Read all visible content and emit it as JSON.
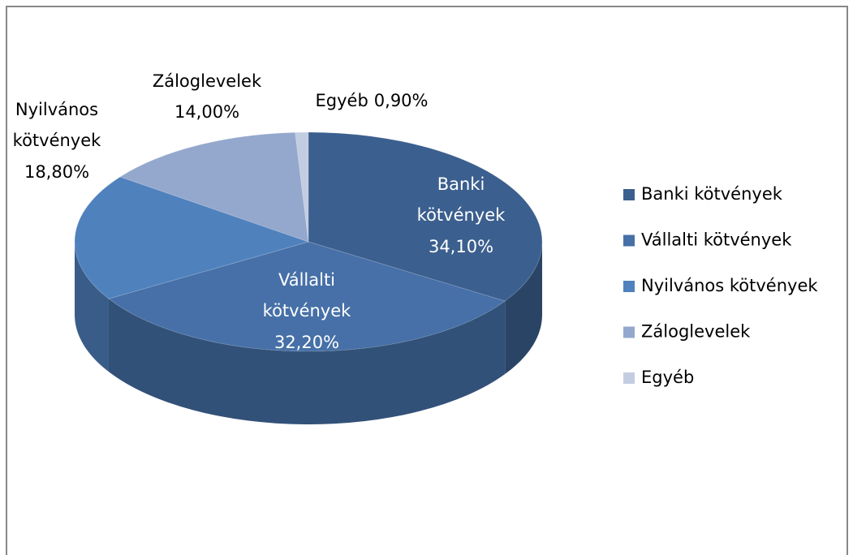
{
  "chart_data": {
    "type": "pie",
    "categories": [
      "Banki kötvények",
      "Vállalti kötvények",
      "Nyilvános kötvények",
      "Záloglevelek",
      "Egyéb"
    ],
    "values": [
      34.1,
      32.2,
      18.8,
      14.0,
      0.9
    ],
    "value_labels": [
      "34,10%",
      "32,20%",
      "18,80%",
      "14,00%",
      "0,90%"
    ],
    "colors": [
      "#3b5f8e",
      "#4670a7",
      "#4f81bd",
      "#94a8cd",
      "#c3cde2"
    ],
    "legend": "right"
  }
}
